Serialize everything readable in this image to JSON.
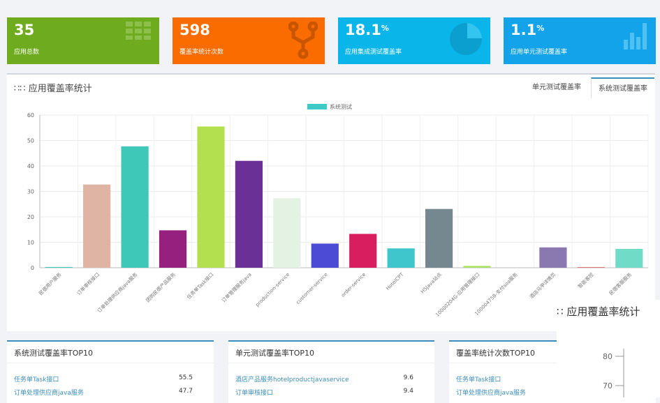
{
  "cards": [
    {
      "value": "35",
      "label": "应用总数"
    },
    {
      "value": "598",
      "label": "覆盖率统计次数"
    },
    {
      "value": "18.1",
      "unit": "%",
      "label": "应用集成测试覆盖率"
    },
    {
      "value": "1.1",
      "unit": "%",
      "label": "应用单元测试覆盖率"
    }
  ],
  "panel": {
    "title": "应用覆盖率统计",
    "tabs": [
      "单元测试覆盖率",
      "系统测试覆盖率"
    ]
  },
  "chart_data": {
    "type": "bar",
    "categories": [
      "民宿用户服务",
      "订单审核接口",
      "订单处理供应商java服务",
      "团购民宿产品服务",
      "任务单Task接口",
      "订单管理服务java",
      "production-service",
      "customer-service",
      "order-service",
      "HotelCPT",
      "H5Java站点",
      "10000204G-应用管理接口",
      "10000475B-支付soa服务",
      "酒店马甲详情页",
      "智能客控",
      "民宿客服服务"
    ],
    "series": [
      {
        "name": "系统测试",
        "color": "#3ecbc8",
        "values": [
          0.3,
          32.7,
          47.7,
          14.7,
          55.5,
          42,
          27.3,
          9.5,
          13.3,
          7.6,
          23.1,
          0.7,
          0,
          8,
          0.2,
          7.4
        ]
      }
    ],
    "colors": [
      "#3ecbc8",
      "#e0b4a4",
      "#3ec8b8",
      "#96207e",
      "#b2e04e",
      "#6b3096",
      "#e3f2e3",
      "#4b4bd6",
      "#d81e5e",
      "#3ec6cc",
      "#758890",
      "#a8e060",
      "#cccccc",
      "#8a78b0",
      "#d8404a",
      "#70dcc8"
    ],
    "ylim": [
      0,
      60
    ],
    "yticks": [
      0,
      10,
      20,
      30,
      40,
      50,
      60
    ],
    "grid": true,
    "legend": "top"
  },
  "top_lists": [
    {
      "title": "系统测试覆盖率TOP10",
      "rows": [
        {
          "name": "任务单Task接口",
          "value": 55.5
        },
        {
          "name": "订单处理供应商java服务",
          "value": 47.7
        }
      ]
    },
    {
      "title": "单元测试覆盖率TOP10",
      "rows": [
        {
          "name": "酒店产品服务hotelproductjavaservice",
          "value": 9.6
        },
        {
          "name": "订单审核接口",
          "value": 9.4
        }
      ]
    },
    {
      "title": "覆盖率统计次数TOP10",
      "rows": [
        {
          "name": "任务单Task接口"
        },
        {
          "name": "订单处理供应商java服务"
        }
      ]
    }
  ],
  "overlay": {
    "title": "应用覆盖率统计",
    "yticks": [
      80,
      70
    ]
  }
}
